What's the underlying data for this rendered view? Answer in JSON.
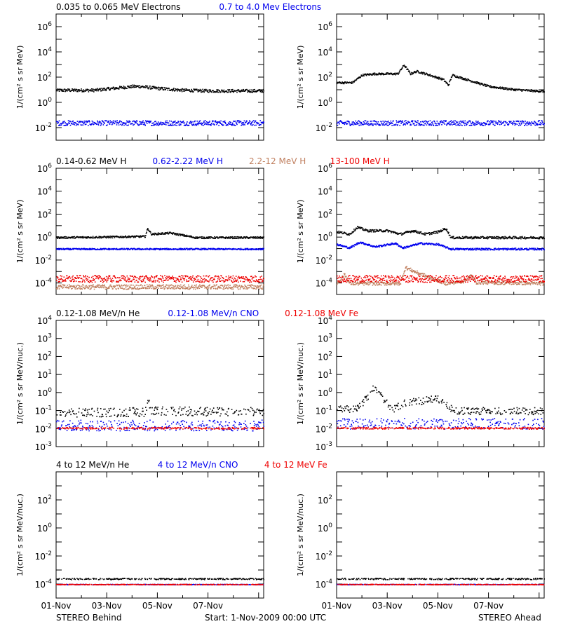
{
  "colors": {
    "black": "#000000",
    "blue": "#0000ee",
    "tan": "#c08060",
    "red": "#ee0000"
  },
  "footer": {
    "left": "STEREO Behind",
    "center": "Start:  1-Nov-2009 00:00 UTC",
    "right": "STEREO Ahead"
  },
  "x_axis": {
    "range_days": [
      0,
      8.2
    ],
    "ticks": [
      {
        "day": 0,
        "label": "01-Nov"
      },
      {
        "day": 2,
        "label": "03-Nov"
      },
      {
        "day": 4,
        "label": "05-Nov"
      },
      {
        "day": 6,
        "label": "07-Nov"
      }
    ]
  },
  "rows": [
    {
      "ylabel": "1/(cm² s sr MeV)",
      "ylog": [
        -3,
        7
      ],
      "yticks": [
        {
          "exp": -2,
          "label": "10",
          "sup": "-2"
        },
        {
          "exp": 0,
          "label": "10",
          "sup": "0"
        },
        {
          "exp": 2,
          "label": "10",
          "sup": "2"
        },
        {
          "exp": 4,
          "label": "10",
          "sup": "4"
        },
        {
          "exp": 6,
          "label": "10",
          "sup": "6"
        }
      ],
      "legend": [
        {
          "text": "0.035 to 0.065 MeV Electrons",
          "color": "black"
        },
        {
          "text": "0.7 to 4.0 Mev Electrons",
          "color": "blue"
        }
      ]
    },
    {
      "ylabel": "1/(cm² s sr MeV)",
      "ylog": [
        -5,
        6
      ],
      "yticks": [
        {
          "exp": -4,
          "label": "10",
          "sup": "-4"
        },
        {
          "exp": -2,
          "label": "10",
          "sup": "-2"
        },
        {
          "exp": 0,
          "label": "10",
          "sup": "0"
        },
        {
          "exp": 2,
          "label": "10",
          "sup": "2"
        },
        {
          "exp": 4,
          "label": "10",
          "sup": "4"
        },
        {
          "exp": 6,
          "label": "10",
          "sup": "6"
        }
      ],
      "legend": [
        {
          "text": "0.14-0.62 MeV H",
          "color": "black"
        },
        {
          "text": "0.62-2.22 MeV H",
          "color": "blue"
        },
        {
          "text": "2.2-12 MeV H",
          "color": "tan"
        },
        {
          "text": "13-100 MeV H",
          "color": "red"
        }
      ]
    },
    {
      "ylabel": "1/(cm² s sr MeV/nuc.)",
      "ylog": [
        -3,
        4
      ],
      "yticks": [
        {
          "exp": -3,
          "label": "10",
          "sup": "-3"
        },
        {
          "exp": -2,
          "label": "10",
          "sup": "-2"
        },
        {
          "exp": -1,
          "label": "10",
          "sup": "-1"
        },
        {
          "exp": 0,
          "label": "10",
          "sup": "0"
        },
        {
          "exp": 1,
          "label": "10",
          "sup": "1"
        },
        {
          "exp": 2,
          "label": "10",
          "sup": "2"
        },
        {
          "exp": 3,
          "label": "10",
          "sup": "3"
        },
        {
          "exp": 4,
          "label": "10",
          "sup": "4"
        }
      ],
      "legend": [
        {
          "text": "0.12-1.08 MeV/n He",
          "color": "black"
        },
        {
          "text": "0.12-1.08 MeV/n CNO",
          "color": "blue"
        },
        {
          "text": "0.12-1.08 MeV Fe",
          "color": "red"
        }
      ]
    },
    {
      "ylabel": "1/(cm² s sr MeV/nuc.)",
      "ylog": [
        -5,
        4
      ],
      "yticks": [
        {
          "exp": -4,
          "label": "10",
          "sup": "-4"
        },
        {
          "exp": -2,
          "label": "10",
          "sup": "-2"
        },
        {
          "exp": 0,
          "label": "10",
          "sup": "0"
        },
        {
          "exp": 2,
          "label": "10",
          "sup": "2"
        }
      ],
      "legend": [
        {
          "text": "4 to 12 MeV/n He",
          "color": "black"
        },
        {
          "text": "4 to 12 MeV/n CNO",
          "color": "blue"
        },
        {
          "text": "4 to 12 MeV Fe",
          "color": "red"
        }
      ]
    }
  ],
  "chart_data": [
    {
      "type": "scatter",
      "panel": "STEREO Behind",
      "row": 1,
      "series": [
        {
          "name": "0.035 to 0.065 MeV Electrons",
          "color": "black",
          "shape": "flat",
          "anchors": [
            [
              0,
              1.0
            ],
            [
              1.5,
              1.0
            ],
            [
              2.0,
              1.1
            ],
            [
              2.5,
              1.2
            ],
            [
              3.0,
              1.3
            ],
            [
              3.3,
              1.3
            ],
            [
              4.0,
              1.15
            ],
            [
              5.0,
              1.0
            ],
            [
              6.0,
              0.95
            ],
            [
              8.2,
              0.95
            ]
          ],
          "scatter": 0.12
        },
        {
          "name": "0.7 to 4.0 Mev Electrons",
          "color": "blue",
          "shape": "flat",
          "anchors": [
            [
              0,
              -1.6
            ],
            [
              8.2,
              -1.6
            ]
          ],
          "scatter": 0.2
        }
      ]
    },
    {
      "type": "scatter",
      "panel": "STEREO Ahead",
      "row": 1,
      "series": [
        {
          "name": "0.035 to 0.065 MeV Electrons",
          "color": "black",
          "shape": "event",
          "anchors": [
            [
              0,
              1.6
            ],
            [
              0.6,
              1.6
            ],
            [
              1.0,
              2.2
            ],
            [
              1.5,
              2.3
            ],
            [
              2.4,
              2.3
            ],
            [
              2.65,
              3.0
            ],
            [
              2.9,
              2.3
            ],
            [
              3.15,
              2.5
            ],
            [
              3.5,
              2.3
            ],
            [
              4.2,
              1.85
            ],
            [
              4.4,
              1.4
            ],
            [
              4.55,
              2.2
            ],
            [
              5.2,
              1.8
            ],
            [
              6.0,
              1.3
            ],
            [
              7.0,
              1.05
            ],
            [
              8.2,
              0.9
            ]
          ],
          "scatter": 0.08
        },
        {
          "name": "0.7 to 4.0 Mev Electrons",
          "color": "blue",
          "shape": "flat",
          "anchors": [
            [
              0,
              -1.6
            ],
            [
              8.2,
              -1.6
            ]
          ],
          "scatter": 0.2
        }
      ]
    },
    {
      "type": "scatter",
      "panel": "STEREO Behind",
      "row": 2,
      "series": [
        {
          "name": "0.14-0.62 MeV H",
          "color": "black",
          "shape": "flat",
          "anchors": [
            [
              0,
              0.0
            ],
            [
              2.0,
              0.05
            ],
            [
              3.5,
              0.1
            ],
            [
              3.6,
              0.8
            ],
            [
              3.75,
              0.3
            ],
            [
              4.5,
              0.4
            ],
            [
              5.5,
              0.0
            ],
            [
              8.2,
              0.0
            ]
          ],
          "scatter": 0.08
        },
        {
          "name": "0.62-2.22 MeV H",
          "color": "blue",
          "shape": "flat",
          "anchors": [
            [
              0,
              -1.0
            ],
            [
              8.2,
              -1.0
            ]
          ],
          "scatter": 0.06
        },
        {
          "name": "2.2-12 MeV H",
          "color": "tan",
          "shape": "flat",
          "anchors": [
            [
              0,
              -4.3
            ],
            [
              8.2,
              -4.3
            ]
          ],
          "scatter": 0.2
        },
        {
          "name": "13-100 MeV H",
          "color": "red",
          "shape": "flat",
          "anchors": [
            [
              0,
              -3.6
            ],
            [
              8.2,
              -3.6
            ]
          ],
          "scatter": 0.3
        }
      ]
    },
    {
      "type": "scatter",
      "panel": "STEREO Ahead",
      "row": 2,
      "series": [
        {
          "name": "0.14-0.62 MeV H",
          "color": "black",
          "shape": "event",
          "anchors": [
            [
              0,
              0.5
            ],
            [
              0.5,
              0.3
            ],
            [
              0.8,
              0.9
            ],
            [
              1.2,
              0.6
            ],
            [
              2.0,
              0.6
            ],
            [
              2.5,
              0.3
            ],
            [
              3.0,
              0.6
            ],
            [
              3.5,
              0.3
            ],
            [
              4.0,
              0.5
            ],
            [
              4.3,
              0.8
            ],
            [
              4.5,
              0.0
            ],
            [
              5.5,
              0.0
            ],
            [
              8.2,
              0.0
            ]
          ],
          "scatter": 0.1
        },
        {
          "name": "0.62-2.22 MeV H",
          "color": "blue",
          "shape": "event",
          "anchors": [
            [
              0,
              -0.6
            ],
            [
              0.5,
              -0.9
            ],
            [
              0.9,
              -0.4
            ],
            [
              1.5,
              -0.8
            ],
            [
              2.3,
              -0.5
            ],
            [
              2.6,
              -0.9
            ],
            [
              3.3,
              -0.5
            ],
            [
              4.0,
              -0.6
            ],
            [
              4.5,
              -1.0
            ],
            [
              8.2,
              -1.0
            ]
          ],
          "scatter": 0.08
        },
        {
          "name": "2.2-12 MeV H",
          "color": "tan",
          "shape": "event",
          "anchors": [
            [
              0,
              -4.0
            ],
            [
              0.3,
              -3.2
            ],
            [
              0.5,
              -4.0
            ],
            [
              2.5,
              -4.0
            ],
            [
              2.7,
              -2.6
            ],
            [
              3.1,
              -3.0
            ],
            [
              3.7,
              -3.5
            ],
            [
              4.3,
              -4.0
            ],
            [
              5.0,
              -3.8
            ],
            [
              5.3,
              -3.3
            ],
            [
              5.5,
              -3.9
            ],
            [
              8.2,
              -4.0
            ]
          ],
          "scatter": 0.15
        },
        {
          "name": "13-100 MeV H",
          "color": "red",
          "shape": "flat",
          "anchors": [
            [
              0,
              -3.6
            ],
            [
              8.2,
              -3.6
            ]
          ],
          "scatter": 0.3
        }
      ]
    },
    {
      "type": "scatter",
      "panel": "STEREO Behind",
      "row": 3,
      "series": [
        {
          "name": "0.12-1.08 MeV/n He",
          "color": "black",
          "shape": "dots",
          "anchors": [
            [
              0,
              -1.1
            ],
            [
              3.5,
              -1.05
            ],
            [
              3.6,
              -0.4
            ],
            [
              3.75,
              -1.0
            ],
            [
              8.2,
              -1.05
            ]
          ],
          "scatter": 0.25
        },
        {
          "name": "0.12-1.08 MeV/n CNO",
          "color": "blue",
          "shape": "dots",
          "anchors": [
            [
              0,
              -1.8
            ],
            [
              8.2,
              -1.8
            ]
          ],
          "scatter": 0.3
        },
        {
          "name": "0.12-1.08 MeV Fe",
          "color": "red",
          "shape": "dots",
          "anchors": [
            [
              0,
              -1.95
            ],
            [
              8.2,
              -1.95
            ]
          ],
          "scatter": 0.05
        }
      ]
    },
    {
      "type": "scatter",
      "panel": "STEREO Ahead",
      "row": 3,
      "series": [
        {
          "name": "0.12-1.08 MeV/n He",
          "color": "black",
          "shape": "dots",
          "anchors": [
            [
              0,
              -0.9
            ],
            [
              0.8,
              -0.9
            ],
            [
              1.2,
              -0.2
            ],
            [
              1.5,
              0.35
            ],
            [
              1.8,
              -0.3
            ],
            [
              2.2,
              -0.9
            ],
            [
              2.6,
              -0.6
            ],
            [
              3.0,
              -0.5
            ],
            [
              3.5,
              -0.4
            ],
            [
              3.9,
              -0.3
            ],
            [
              4.3,
              -0.6
            ],
            [
              4.6,
              -1.0
            ],
            [
              8.2,
              -1.0
            ]
          ],
          "scatter": 0.2
        },
        {
          "name": "0.12-1.08 MeV/n CNO",
          "color": "blue",
          "shape": "dots",
          "anchors": [
            [
              0,
              -1.7
            ],
            [
              8.2,
              -1.7
            ]
          ],
          "scatter": 0.3
        },
        {
          "name": "0.12-1.08 MeV Fe",
          "color": "red",
          "shape": "dots",
          "anchors": [
            [
              0,
              -1.95
            ],
            [
              8.2,
              -1.95
            ]
          ],
          "scatter": 0.05
        }
      ]
    },
    {
      "type": "scatter",
      "panel": "STEREO Behind",
      "row": 4,
      "series": [
        {
          "name": "4 to 12 MeV/n He",
          "color": "black",
          "shape": "dots",
          "anchors": [
            [
              0,
              -3.6
            ],
            [
              8.2,
              -3.6
            ]
          ],
          "scatter": 0.05
        },
        {
          "name": "4 to 12 MeV/n CNO",
          "color": "blue",
          "shape": "dots",
          "anchors": [
            [
              0,
              -4.0
            ],
            [
              8.2,
              -4.0
            ]
          ],
          "scatter": 0.02
        },
        {
          "name": "4 to 12 MeV Fe",
          "color": "red",
          "shape": "dots",
          "anchors": [
            [
              0,
              -4.0
            ],
            [
              8.2,
              -4.0
            ]
          ],
          "scatter": 0.02
        }
      ]
    },
    {
      "type": "scatter",
      "panel": "STEREO Ahead",
      "row": 4,
      "series": [
        {
          "name": "4 to 12 MeV/n He",
          "color": "black",
          "shape": "dots",
          "anchors": [
            [
              0,
              -3.6
            ],
            [
              8.2,
              -3.6
            ]
          ],
          "scatter": 0.05
        },
        {
          "name": "4 to 12 MeV/n CNO",
          "color": "blue",
          "shape": "dots",
          "anchors": [
            [
              0,
              -4.0
            ],
            [
              8.2,
              -4.0
            ]
          ],
          "scatter": 0.02
        },
        {
          "name": "4 to 12 MeV Fe",
          "color": "red",
          "shape": "dots",
          "anchors": [
            [
              0,
              -4.0
            ],
            [
              8.2,
              -4.0
            ]
          ],
          "scatter": 0.02
        }
      ]
    }
  ]
}
